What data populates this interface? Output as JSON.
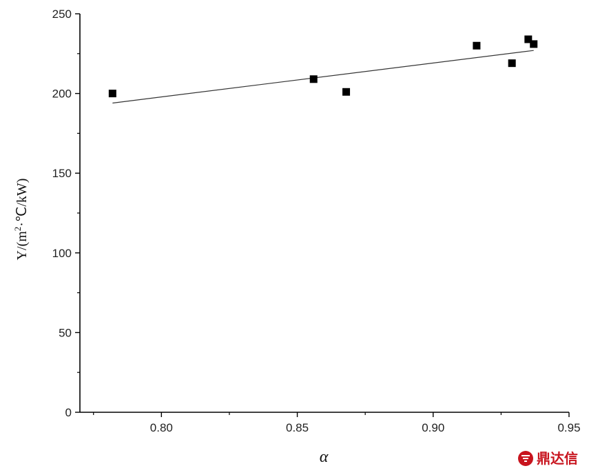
{
  "chart_data": {
    "type": "scatter",
    "xlabel": "α",
    "ylabel_main": "Y/(m",
    "ylabel_sup": "2",
    "ylabel_rest": "·℃/kW)",
    "xlim": [
      0.77,
      0.95
    ],
    "ylim": [
      0,
      250
    ],
    "xticks": [
      "0.80",
      "0.85",
      "0.90",
      "0.95"
    ],
    "yticks": [
      "0",
      "50",
      "100",
      "150",
      "200",
      "250"
    ],
    "points": [
      {
        "x": 0.782,
        "y": 200
      },
      {
        "x": 0.856,
        "y": 209
      },
      {
        "x": 0.868,
        "y": 201
      },
      {
        "x": 0.916,
        "y": 230
      },
      {
        "x": 0.929,
        "y": 219
      },
      {
        "x": 0.935,
        "y": 234
      },
      {
        "x": 0.937,
        "y": 231
      }
    ],
    "fit_line": {
      "x": [
        0.782,
        0.937
      ],
      "y": [
        194,
        227
      ]
    },
    "grid": false
  },
  "watermark": {
    "text": "鼎达信",
    "color": "#c8141e"
  }
}
